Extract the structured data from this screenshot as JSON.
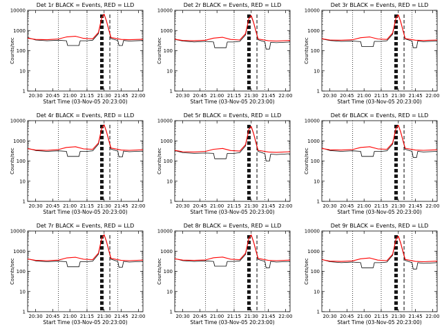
{
  "chart_data": [
    {
      "type": "line",
      "title": "Det 1r  BLACK = Events, RED = LLD",
      "xlabel": "Start Time (03-Nov-05 20:23:00)",
      "ylabel": "Counts/sec",
      "xticks": [
        "20:30",
        "20:45",
        "21:00",
        "21:15",
        "21:30",
        "21:45",
        "22:00"
      ],
      "yticks": [
        "1",
        "10",
        "100",
        "1000",
        "10000"
      ],
      "ylim": [
        1,
        10000
      ],
      "yscale": "log",
      "series": [
        {
          "color": "#000000",
          "x": [
            "20:23",
            "20:30",
            "20:40",
            "20:50",
            "20:57",
            "20:58",
            "21:08",
            "21:09",
            "21:15",
            "21:20",
            "21:25",
            "21:28",
            "21:30",
            "21:32",
            "21:36",
            "21:42",
            "21:43",
            "21:46",
            "21:47",
            "21:52",
            "22:04"
          ],
          "y": [
            450,
            340,
            310,
            330,
            310,
            180,
            180,
            310,
            310,
            330,
            700,
            4500,
            6000,
            3000,
            400,
            320,
            180,
            180,
            320,
            300,
            320
          ]
        },
        {
          "color": "#ff0000",
          "x": [
            "20:23",
            "20:30",
            "20:40",
            "20:50",
            "20:57",
            "21:05",
            "21:12",
            "21:20",
            "21:25",
            "21:28",
            "21:30",
            "21:32",
            "21:36",
            "21:45",
            "21:52",
            "22:04"
          ],
          "y": [
            420,
            360,
            350,
            380,
            480,
            520,
            410,
            390,
            800,
            4500,
            6500,
            3000,
            450,
            360,
            350,
            370
          ]
        }
      ]
    },
    {
      "type": "line",
      "title": "Det 2r  BLACK = Events, RED = LLD",
      "xlabel": "Start Time (03-Nov-05 20:23:00)",
      "ylabel": "Counts/sec",
      "xticks": [
        "20:30",
        "20:45",
        "21:00",
        "21:15",
        "21:30",
        "21:45",
        "22:00"
      ],
      "yticks": [
        "1",
        "10",
        "100",
        "1000",
        "10000"
      ],
      "ylim": [
        1,
        10000
      ],
      "yscale": "log",
      "series": [
        {
          "color": "#000000",
          "x": [
            "20:23",
            "20:30",
            "20:40",
            "20:50",
            "20:57",
            "20:58",
            "21:08",
            "21:09",
            "21:15",
            "21:20",
            "21:25",
            "21:28",
            "21:30",
            "21:32",
            "21:36",
            "21:42",
            "21:43",
            "21:46",
            "21:47",
            "21:52",
            "22:04"
          ],
          "y": [
            360,
            300,
            270,
            290,
            270,
            140,
            140,
            270,
            270,
            290,
            600,
            4000,
            5000,
            2500,
            350,
            270,
            120,
            120,
            260,
            250,
            270
          ]
        },
        {
          "color": "#ff0000",
          "x": [
            "20:23",
            "20:30",
            "20:40",
            "20:50",
            "20:57",
            "21:05",
            "21:12",
            "21:20",
            "21:25",
            "21:28",
            "21:30",
            "21:32",
            "21:36",
            "21:45",
            "21:52",
            "22:04"
          ],
          "y": [
            370,
            320,
            310,
            330,
            420,
            460,
            360,
            340,
            700,
            4000,
            5500,
            2600,
            380,
            310,
            300,
            320
          ]
        }
      ]
    },
    {
      "type": "line",
      "title": "Det 3r  BLACK = Events, RED = LLD",
      "xlabel": "Start Time (03-Nov-05 20:23:00)",
      "ylabel": "Counts/sec",
      "xticks": [
        "20:30",
        "20:45",
        "21:00",
        "21:15",
        "21:30",
        "21:45",
        "22:00"
      ],
      "yticks": [
        "1",
        "10",
        "100",
        "1000",
        "10000"
      ],
      "ylim": [
        1,
        10000
      ],
      "yscale": "log",
      "series": [
        {
          "color": "#000000",
          "x": [
            "20:23",
            "20:30",
            "20:40",
            "20:50",
            "20:57",
            "20:58",
            "21:08",
            "21:09",
            "21:15",
            "21:20",
            "21:25",
            "21:28",
            "21:30",
            "21:32",
            "21:36",
            "21:42",
            "21:43",
            "21:46",
            "21:47",
            "21:52",
            "22:04"
          ],
          "y": [
            380,
            320,
            290,
            300,
            280,
            160,
            160,
            290,
            290,
            310,
            650,
            4200,
            5500,
            2800,
            380,
            300,
            140,
            140,
            300,
            280,
            300
          ]
        },
        {
          "color": "#ff0000",
          "x": [
            "20:23",
            "20:30",
            "20:40",
            "20:50",
            "20:57",
            "21:05",
            "21:12",
            "21:20",
            "21:25",
            "21:28",
            "21:30",
            "21:32",
            "21:36",
            "21:45",
            "21:52",
            "22:04"
          ],
          "y": [
            390,
            340,
            330,
            350,
            440,
            480,
            380,
            360,
            750,
            4300,
            6000,
            2800,
            400,
            330,
            320,
            340
          ]
        }
      ]
    },
    {
      "type": "line",
      "title": "Det 4r  BLACK = Events, RED = LLD",
      "xlabel": "Start Time (03-Nov-05 20:23:00)",
      "ylabel": "Counts/sec",
      "xticks": [
        "20:30",
        "20:45",
        "21:00",
        "21:15",
        "21:30",
        "21:45",
        "22:00"
      ],
      "yticks": [
        "1",
        "10",
        "100",
        "1000",
        "10000"
      ],
      "ylim": [
        1,
        10000
      ],
      "yscale": "log",
      "series": [
        {
          "color": "#000000",
          "x": [
            "20:23",
            "20:30",
            "20:40",
            "20:50",
            "20:57",
            "20:58",
            "21:08",
            "21:09",
            "21:15",
            "21:20",
            "21:25",
            "21:28",
            "21:30",
            "21:32",
            "21:36",
            "21:42",
            "21:43",
            "21:46",
            "21:47",
            "21:52",
            "22:04"
          ],
          "y": [
            430,
            330,
            300,
            320,
            300,
            170,
            170,
            300,
            300,
            320,
            680,
            4400,
            5800,
            2900,
            390,
            310,
            160,
            160,
            310,
            290,
            310
          ]
        },
        {
          "color": "#ff0000",
          "x": [
            "20:23",
            "20:30",
            "20:40",
            "20:50",
            "20:57",
            "21:05",
            "21:12",
            "21:20",
            "21:25",
            "21:28",
            "21:30",
            "21:32",
            "21:36",
            "21:45",
            "21:52",
            "22:04"
          ],
          "y": [
            410,
            350,
            340,
            370,
            470,
            510,
            400,
            380,
            780,
            4400,
            6300,
            2900,
            440,
            350,
            340,
            360
          ]
        }
      ]
    },
    {
      "type": "line",
      "title": "Det 5r  BLACK = Events, RED = LLD",
      "xlabel": "Start Time (03-Nov-05 20:23:00)",
      "ylabel": "Counts/sec",
      "xticks": [
        "20:30",
        "20:45",
        "21:00",
        "21:15",
        "21:30",
        "21:45",
        "22:00"
      ],
      "yticks": [
        "1",
        "10",
        "100",
        "1000",
        "10000"
      ],
      "ylim": [
        1,
        10000
      ],
      "yscale": "log",
      "series": [
        {
          "color": "#000000",
          "x": [
            "20:23",
            "20:30",
            "20:40",
            "20:50",
            "20:57",
            "20:58",
            "21:08",
            "21:09",
            "21:15",
            "21:20",
            "21:25",
            "21:28",
            "21:30",
            "21:32",
            "21:36",
            "21:42",
            "21:43",
            "21:46",
            "21:47",
            "21:52",
            "22:04"
          ],
          "y": [
            330,
            260,
            240,
            250,
            240,
            130,
            130,
            240,
            240,
            260,
            560,
            3800,
            4800,
            2300,
            300,
            230,
            100,
            100,
            220,
            210,
            230
          ]
        },
        {
          "color": "#ff0000",
          "x": [
            "20:23",
            "20:30",
            "20:40",
            "20:50",
            "20:57",
            "21:05",
            "21:12",
            "21:20",
            "21:25",
            "21:28",
            "21:30",
            "21:32",
            "21:36",
            "21:45",
            "21:52",
            "22:04"
          ],
          "y": [
            340,
            290,
            280,
            300,
            380,
            420,
            330,
            310,
            650,
            3800,
            5200,
            2400,
            340,
            280,
            270,
            290
          ]
        }
      ]
    },
    {
      "type": "line",
      "title": "Det 6r  BLACK = Events, RED = LLD",
      "xlabel": "Start Time (03-Nov-05 20:23:00)",
      "ylabel": "Counts/sec",
      "xticks": [
        "20:30",
        "20:45",
        "21:00",
        "21:15",
        "21:30",
        "21:45",
        "22:00"
      ],
      "yticks": [
        "1",
        "10",
        "100",
        "1000",
        "10000"
      ],
      "ylim": [
        1,
        10000
      ],
      "yscale": "log",
      "series": [
        {
          "color": "#000000",
          "x": [
            "20:23",
            "20:30",
            "20:40",
            "20:50",
            "20:57",
            "20:58",
            "21:08",
            "21:09",
            "21:15",
            "21:20",
            "21:25",
            "21:28",
            "21:30",
            "21:32",
            "21:36",
            "21:42",
            "21:43",
            "21:46",
            "21:47",
            "21:52",
            "22:04"
          ],
          "y": [
            440,
            330,
            300,
            320,
            300,
            170,
            170,
            300,
            300,
            320,
            680,
            4300,
            5600,
            2800,
            380,
            300,
            150,
            150,
            300,
            280,
            300
          ]
        },
        {
          "color": "#ff0000",
          "x": [
            "20:23",
            "20:30",
            "20:40",
            "20:50",
            "20:57",
            "21:05",
            "21:12",
            "21:20",
            "21:25",
            "21:28",
            "21:30",
            "21:32",
            "21:36",
            "21:45",
            "21:52",
            "22:04"
          ],
          "y": [
            420,
            360,
            350,
            370,
            470,
            510,
            400,
            380,
            780,
            4300,
            6000,
            2800,
            430,
            350,
            340,
            360
          ]
        }
      ]
    },
    {
      "type": "line",
      "title": "Det 7r  BLACK = Events, RED = LLD",
      "xlabel": "Start Time (03-Nov-05 20:23:00)",
      "ylabel": "Counts/sec",
      "xticks": [
        "20:30",
        "20:45",
        "21:00",
        "21:15",
        "21:30",
        "21:45",
        "22:00"
      ],
      "yticks": [
        "1",
        "10",
        "100",
        "1000",
        "10000"
      ],
      "ylim": [
        1,
        10000
      ],
      "yscale": "log",
      "series": [
        {
          "color": "#000000",
          "x": [
            "20:23",
            "20:30",
            "20:40",
            "20:50",
            "20:57",
            "20:58",
            "21:08",
            "21:09",
            "21:15",
            "21:20",
            "21:25",
            "21:28",
            "21:30",
            "21:32",
            "21:36",
            "21:42",
            "21:43",
            "21:46",
            "21:47",
            "21:52",
            "22:04"
          ],
          "y": [
            420,
            330,
            300,
            320,
            300,
            170,
            170,
            300,
            300,
            320,
            700,
            4600,
            6200,
            3000,
            400,
            310,
            160,
            160,
            310,
            290,
            310
          ]
        },
        {
          "color": "#ff0000",
          "x": [
            "20:23",
            "20:30",
            "20:40",
            "20:50",
            "20:57",
            "21:05",
            "21:12",
            "21:20",
            "21:25",
            "21:28",
            "21:30",
            "21:32",
            "21:36",
            "21:45",
            "21:52",
            "22:04"
          ],
          "y": [
            410,
            350,
            340,
            360,
            460,
            500,
            400,
            380,
            800,
            4600,
            6600,
            3100,
            440,
            350,
            340,
            360
          ]
        }
      ]
    },
    {
      "type": "line",
      "title": "Det 8r  BLACK = Events, RED = LLD",
      "xlabel": "Start Time (03-Nov-05 20:23:00)",
      "ylabel": "Counts/sec",
      "xticks": [
        "20:30",
        "20:45",
        "21:00",
        "21:15",
        "21:30",
        "21:45",
        "22:00"
      ],
      "yticks": [
        "1",
        "10",
        "100",
        "1000",
        "10000"
      ],
      "ylim": [
        1,
        10000
      ],
      "yscale": "log",
      "series": [
        {
          "color": "#000000",
          "x": [
            "20:23",
            "20:30",
            "20:40",
            "20:50",
            "20:57",
            "20:58",
            "21:08",
            "21:09",
            "21:15",
            "21:20",
            "21:25",
            "21:28",
            "21:30",
            "21:32",
            "21:36",
            "21:42",
            "21:43",
            "21:46",
            "21:47",
            "21:52",
            "22:04"
          ],
          "y": [
            430,
            340,
            310,
            330,
            310,
            180,
            180,
            310,
            310,
            330,
            690,
            4500,
            5900,
            2900,
            390,
            310,
            150,
            150,
            310,
            290,
            310
          ]
        },
        {
          "color": "#ff0000",
          "x": [
            "20:23",
            "20:30",
            "20:40",
            "20:50",
            "20:57",
            "21:05",
            "21:12",
            "21:20",
            "21:25",
            "21:28",
            "21:30",
            "21:32",
            "21:36",
            "21:45",
            "21:52",
            "22:04"
          ],
          "y": [
            420,
            360,
            350,
            370,
            470,
            510,
            400,
            380,
            790,
            4500,
            6400,
            3000,
            440,
            350,
            340,
            360
          ]
        }
      ]
    },
    {
      "type": "line",
      "title": "Det 9r  BLACK = Events, RED = LLD",
      "xlabel": "Start Time (03-Nov-05 20:23:00)",
      "ylabel": "Counts/sec",
      "xticks": [
        "20:30",
        "20:45",
        "21:00",
        "21:15",
        "21:30",
        "21:45",
        "22:00"
      ],
      "yticks": [
        "1",
        "10",
        "100",
        "1000",
        "10000"
      ],
      "ylim": [
        1,
        10000
      ],
      "yscale": "log",
      "series": [
        {
          "color": "#000000",
          "x": [
            "20:23",
            "20:30",
            "20:40",
            "20:50",
            "20:57",
            "20:58",
            "21:08",
            "21:09",
            "21:15",
            "21:20",
            "21:25",
            "21:28",
            "21:30",
            "21:32",
            "21:36",
            "21:42",
            "21:43",
            "21:46",
            "21:47",
            "21:52",
            "22:04"
          ],
          "y": [
            390,
            300,
            270,
            290,
            270,
            150,
            150,
            270,
            270,
            290,
            620,
            4000,
            5200,
            2500,
            350,
            270,
            130,
            130,
            270,
            250,
            270
          ]
        },
        {
          "color": "#ff0000",
          "x": [
            "20:23",
            "20:30",
            "20:40",
            "20:50",
            "20:57",
            "21:05",
            "21:12",
            "21:20",
            "21:25",
            "21:28",
            "21:30",
            "21:32",
            "21:36",
            "21:45",
            "21:52",
            "22:04"
          ],
          "y": [
            380,
            320,
            310,
            330,
            420,
            460,
            360,
            340,
            700,
            4000,
            5600,
            2600,
            390,
            310,
            300,
            320
          ]
        }
      ]
    }
  ],
  "colors": {
    "events": "#000000",
    "lld": "#ff0000"
  }
}
